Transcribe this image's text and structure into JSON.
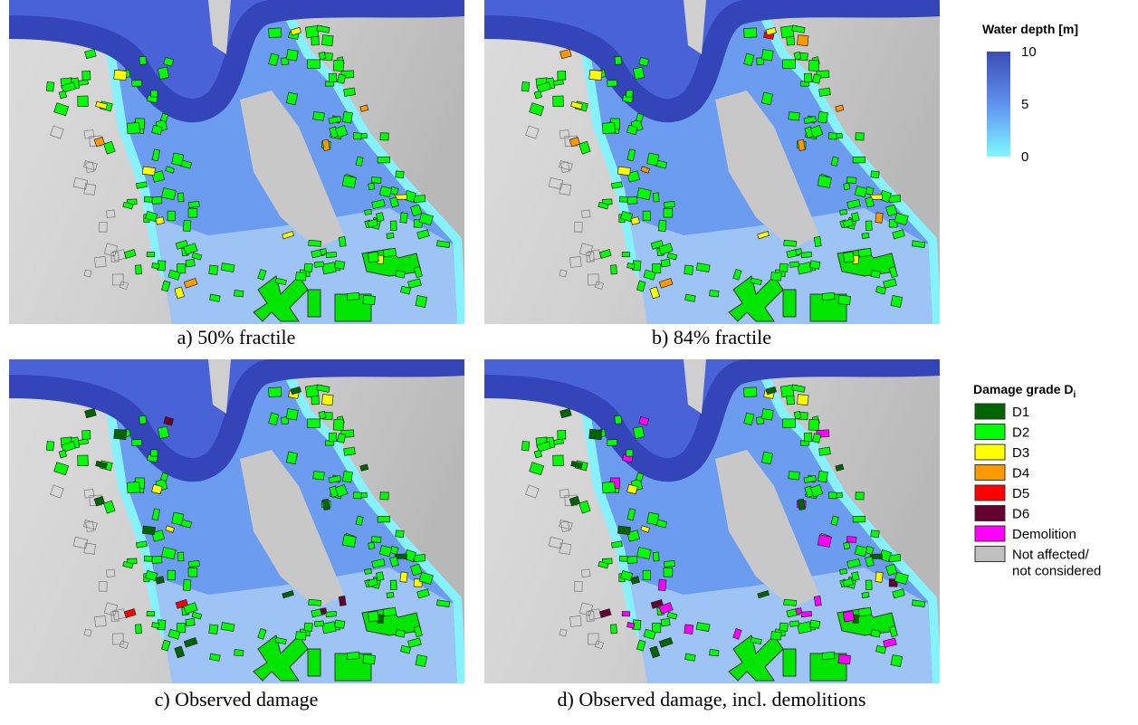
{
  "panels": [
    {
      "caption": "a) 50% fractile"
    },
    {
      "caption": "b) 84% fractile"
    },
    {
      "caption": "c) Observed damage"
    },
    {
      "caption": "d) Observed damage, incl. demolitions"
    }
  ],
  "water_depth_legend": {
    "title": "Water depth [m]",
    "ticks": [
      10,
      5,
      0
    ]
  },
  "damage_legend": {
    "title": "Damage grade D",
    "title_subscript": "i",
    "items": [
      {
        "label": "D1",
        "color": "#006400"
      },
      {
        "label": "D2",
        "color": "#00ff00"
      },
      {
        "label": "D3",
        "color": "#ffff00"
      },
      {
        "label": "D4",
        "color": "#ff9900"
      },
      {
        "label": "D5",
        "color": "#ff0000"
      },
      {
        "label": "D6",
        "color": "#660033"
      },
      {
        "label": "Demolition",
        "color": "#ff00ff"
      },
      {
        "label": [
          "Not affected/",
          "not considered"
        ],
        "color": "#c0c0c0"
      }
    ]
  }
}
